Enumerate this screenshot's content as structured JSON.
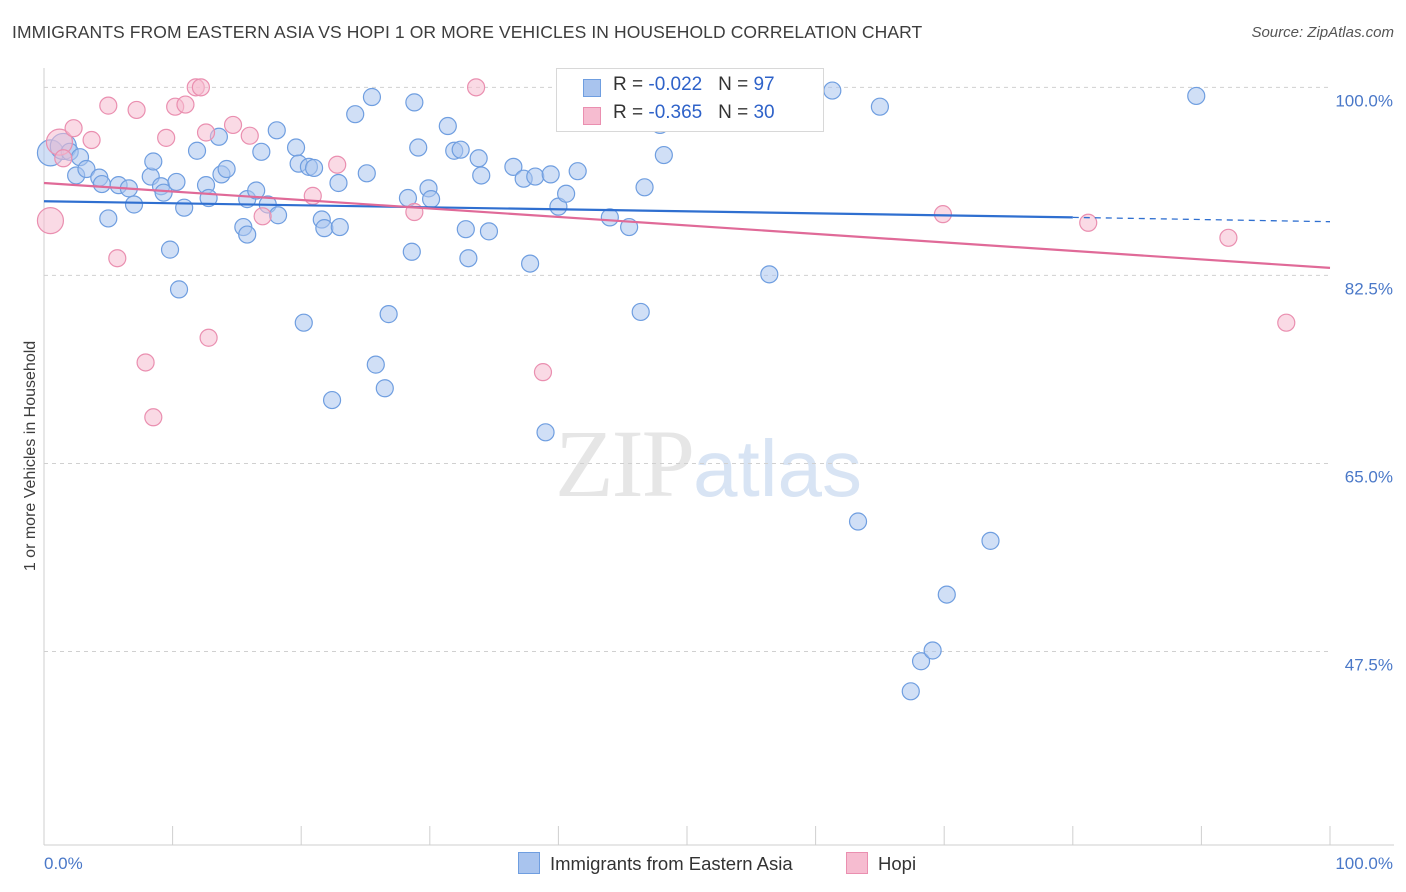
{
  "title": "IMMIGRANTS FROM EASTERN ASIA VS HOPI 1 OR MORE VEHICLES IN HOUSEHOLD CORRELATION CHART",
  "source": "Source: ZipAtlas.com",
  "watermark": {
    "zip": "ZIP",
    "atlas": "atlas"
  },
  "legend": {
    "rows": [
      {
        "r_label": "R = ",
        "r_value": "-0.022",
        "n_label": "N = ",
        "n_value": "97"
      },
      {
        "r_label": "R = ",
        "r_value": "-0.365",
        "n_label": "N = ",
        "n_value": "30"
      }
    ]
  },
  "colors": {
    "blue_fill": "#a9c4ee",
    "blue_stroke": "#6f9ee0",
    "blue_line": "#2f6fd0",
    "pink_fill": "#f6bcd0",
    "pink_stroke": "#ea8fb0",
    "pink_line": "#e06a98",
    "tick_color": "#4a78c8",
    "grid": "#d0d0d0"
  },
  "chart_data": {
    "type": "scatter",
    "title": "IMMIGRANTS FROM EASTERN ASIA VS HOPI 1 OR MORE VEHICLES IN HOUSEHOLD CORRELATION CHART",
    "xlabel": "",
    "ylabel": "1 or more Vehicles in Household",
    "x_tick_labels": [
      "0.0%",
      "100.0%"
    ],
    "y_tick_labels": [
      "100.0%",
      "82.5%",
      "65.0%",
      "47.5%"
    ],
    "y_ticks": [
      100.0,
      82.5,
      65.0,
      47.5
    ],
    "xlim": [
      0,
      100
    ],
    "ylim": [
      29.5,
      101.8
    ],
    "grid": true,
    "legend_position": "top-center",
    "series": [
      {
        "name": "Immigrants from Eastern Asia",
        "color": "#a9c4ee",
        "trend": {
          "x": [
            0,
            80
          ],
          "y": [
            89.4,
            87.9
          ],
          "dashed_to": [
            100,
            87.5
          ]
        },
        "points": [
          [
            0.5,
            93.9
          ],
          [
            1.5,
            94.5
          ],
          [
            2.0,
            94.0
          ],
          [
            2.5,
            91.8
          ],
          [
            2.8,
            93.5
          ],
          [
            3.3,
            92.4
          ],
          [
            4.3,
            91.6
          ],
          [
            5.0,
            87.8
          ],
          [
            4.5,
            91.0
          ],
          [
            5.8,
            90.9
          ],
          [
            6.6,
            90.6
          ],
          [
            7.0,
            89.1
          ],
          [
            8.3,
            91.7
          ],
          [
            8.5,
            93.1
          ],
          [
            9.1,
            90.8
          ],
          [
            9.3,
            90.2
          ],
          [
            9.8,
            84.9
          ],
          [
            10.3,
            91.2
          ],
          [
            10.5,
            81.2
          ],
          [
            10.9,
            88.8
          ],
          [
            11.9,
            94.1
          ],
          [
            12.6,
            90.9
          ],
          [
            12.8,
            89.7
          ],
          [
            13.6,
            95.4
          ],
          [
            13.8,
            91.9
          ],
          [
            14.2,
            92.4
          ],
          [
            15.5,
            87.0
          ],
          [
            15.8,
            86.3
          ],
          [
            15.8,
            89.6
          ],
          [
            16.5,
            90.4
          ],
          [
            16.9,
            94.0
          ],
          [
            17.4,
            89.1
          ],
          [
            18.1,
            96.0
          ],
          [
            18.2,
            88.1
          ],
          [
            19.6,
            94.4
          ],
          [
            19.8,
            92.9
          ],
          [
            20.2,
            78.1
          ],
          [
            20.6,
            92.6
          ],
          [
            21.0,
            92.5
          ],
          [
            21.6,
            87.7
          ],
          [
            21.8,
            86.9
          ],
          [
            22.4,
            70.9
          ],
          [
            22.9,
            91.1
          ],
          [
            23.0,
            87.0
          ],
          [
            24.2,
            97.5
          ],
          [
            25.1,
            92.0
          ],
          [
            25.5,
            99.1
          ],
          [
            25.8,
            74.2
          ],
          [
            26.5,
            72.0
          ],
          [
            26.8,
            78.9
          ],
          [
            28.3,
            89.7
          ],
          [
            28.6,
            84.7
          ],
          [
            28.8,
            98.6
          ],
          [
            29.1,
            94.4
          ],
          [
            29.9,
            90.6
          ],
          [
            30.1,
            89.6
          ],
          [
            31.4,
            96.4
          ],
          [
            31.9,
            94.1
          ],
          [
            32.4,
            94.2
          ],
          [
            32.8,
            86.8
          ],
          [
            33.0,
            84.1
          ],
          [
            33.8,
            93.4
          ],
          [
            34.0,
            91.8
          ],
          [
            34.6,
            86.6
          ],
          [
            36.5,
            92.6
          ],
          [
            37.3,
            91.5
          ],
          [
            37.8,
            83.6
          ],
          [
            38.2,
            91.7
          ],
          [
            39.0,
            67.9
          ],
          [
            39.4,
            91.9
          ],
          [
            40.0,
            88.9
          ],
          [
            40.6,
            90.1
          ],
          [
            41.5,
            92.2
          ],
          [
            41.7,
            98.8
          ],
          [
            42.5,
            98.3
          ],
          [
            44.0,
            87.9
          ],
          [
            45.1,
            99.6
          ],
          [
            45.5,
            87.0
          ],
          [
            46.4,
            79.1
          ],
          [
            46.7,
            90.7
          ],
          [
            47.9,
            96.5
          ],
          [
            48.2,
            93.7
          ],
          [
            49.6,
            99.6
          ],
          [
            50.7,
            100.0
          ],
          [
            51.0,
            100.0
          ],
          [
            52.0,
            99.6
          ],
          [
            54.2,
            99.3
          ],
          [
            56.4,
            82.6
          ],
          [
            61.3,
            99.7
          ],
          [
            63.3,
            59.6
          ],
          [
            65.0,
            98.2
          ],
          [
            67.4,
            43.8
          ],
          [
            68.2,
            46.6
          ],
          [
            69.1,
            47.6
          ],
          [
            70.2,
            52.8
          ],
          [
            73.6,
            57.8
          ],
          [
            89.6,
            99.2
          ]
        ]
      },
      {
        "name": "Hopi",
        "color": "#f6bcd0",
        "trend": {
          "x": [
            0,
            100
          ],
          "y": [
            91.1,
            83.2
          ]
        },
        "points": [
          [
            0.5,
            87.6
          ],
          [
            1.2,
            94.9
          ],
          [
            1.5,
            93.4
          ],
          [
            2.3,
            96.2
          ],
          [
            3.7,
            95.1
          ],
          [
            5.0,
            98.3
          ],
          [
            5.7,
            84.1
          ],
          [
            7.2,
            97.9
          ],
          [
            7.9,
            74.4
          ],
          [
            8.5,
            69.3
          ],
          [
            9.5,
            95.3
          ],
          [
            10.2,
            98.2
          ],
          [
            11.0,
            98.4
          ],
          [
            11.8,
            100.0
          ],
          [
            12.2,
            100.0
          ],
          [
            12.6,
            95.8
          ],
          [
            12.8,
            76.7
          ],
          [
            14.7,
            96.5
          ],
          [
            16.0,
            95.5
          ],
          [
            17.0,
            88.0
          ],
          [
            20.9,
            89.9
          ],
          [
            22.8,
            92.8
          ],
          [
            28.8,
            88.4
          ],
          [
            33.6,
            100.0
          ],
          [
            38.8,
            73.5
          ],
          [
            48.8,
            100.0
          ],
          [
            69.9,
            88.2
          ],
          [
            81.2,
            87.4
          ],
          [
            92.1,
            86.0
          ],
          [
            96.6,
            78.1
          ]
        ]
      }
    ]
  },
  "bottom_legend": [
    {
      "label": "Immigrants from Eastern Asia"
    },
    {
      "label": "Hopi"
    }
  ]
}
